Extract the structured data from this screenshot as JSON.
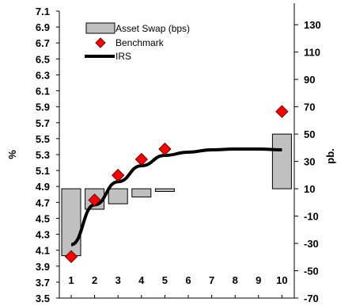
{
  "chart_data": {
    "type": "bar",
    "title": "",
    "xlabel": "",
    "ylabel_left": "%",
    "ylabel_right": "pb.",
    "x_ticks": [
      1,
      2,
      3,
      4,
      5,
      6,
      7,
      8,
      9,
      10
    ],
    "ylim_left": [
      3.5,
      7.1
    ],
    "ylim_right": [
      -70,
      140
    ],
    "left_ticks": [
      "3.5",
      "3.7",
      "3.9",
      "4.1",
      "4.3",
      "4.5",
      "4.7",
      "4.9",
      "5.1",
      "5.3",
      "5.5",
      "5.7",
      "5.9",
      "6.1",
      "6.3",
      "6.5",
      "6.7",
      "6.9",
      "7.1"
    ],
    "right_ticks": [
      "-70",
      "-50",
      "-30",
      "-10",
      "10",
      "30",
      "50",
      "70",
      "90",
      "110",
      "130"
    ],
    "legend": {
      "position": "top-left",
      "entries": [
        {
          "key": "bar",
          "label": "Asset Swap (bps)"
        },
        {
          "key": "marker",
          "label": "Benchmark"
        },
        {
          "key": "line",
          "label": "IRS"
        }
      ]
    },
    "series": [
      {
        "name": "Asset Swap (bps)",
        "axis": "right",
        "type": "bar",
        "color": "#c0c0c0",
        "x": [
          1,
          2,
          3,
          4,
          5,
          10
        ],
        "values": [
          -39,
          -5,
          -1,
          4,
          8,
          50
        ]
      },
      {
        "name": "Benchmark",
        "axis": "left",
        "type": "scatter",
        "color": "#ff0000",
        "x": [
          1,
          2,
          3,
          4,
          5,
          10
        ],
        "values": [
          4.02,
          4.73,
          5.04,
          5.24,
          5.37,
          5.84
        ]
      },
      {
        "name": "IRS",
        "axis": "left",
        "type": "line",
        "color": "#000000",
        "x": [
          1,
          2,
          3,
          4,
          5,
          6,
          7,
          8,
          9,
          10
        ],
        "values": [
          4.17,
          4.67,
          4.96,
          5.16,
          5.29,
          5.33,
          5.36,
          5.37,
          5.37,
          5.36
        ]
      }
    ]
  }
}
